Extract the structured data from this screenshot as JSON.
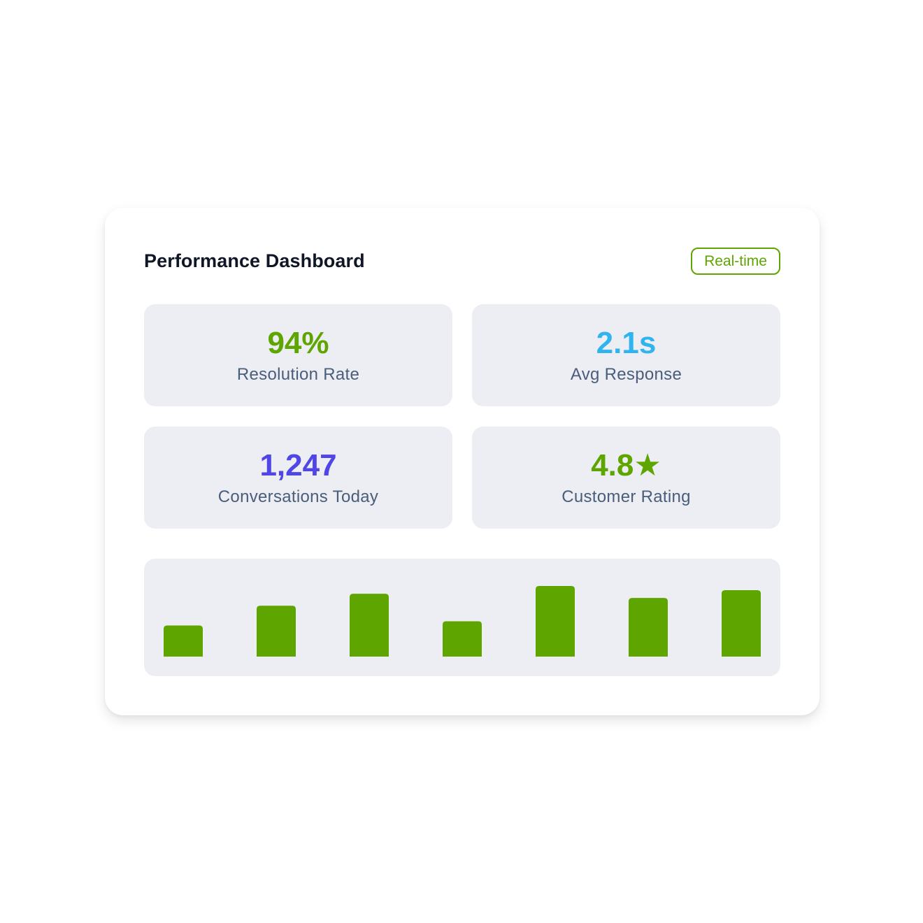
{
  "header": {
    "title": "Performance Dashboard",
    "badge": "Real-time"
  },
  "metrics": [
    {
      "value": "94%",
      "label": "Resolution Rate",
      "color": "#5ea500"
    },
    {
      "value": "2.1s",
      "label": "Avg Response",
      "color": "#2fb4ee"
    },
    {
      "value": "1,247",
      "label": "Conversations Today",
      "color": "#4f46e5"
    },
    {
      "value": "4.8★",
      "label": "Customer Rating",
      "color": "#5ea500"
    }
  ],
  "chart_data": {
    "type": "bar",
    "values": [
      44,
      72,
      89,
      50,
      100,
      83,
      94
    ],
    "color": "#5ea500",
    "ylim": [
      0,
      100
    ]
  }
}
